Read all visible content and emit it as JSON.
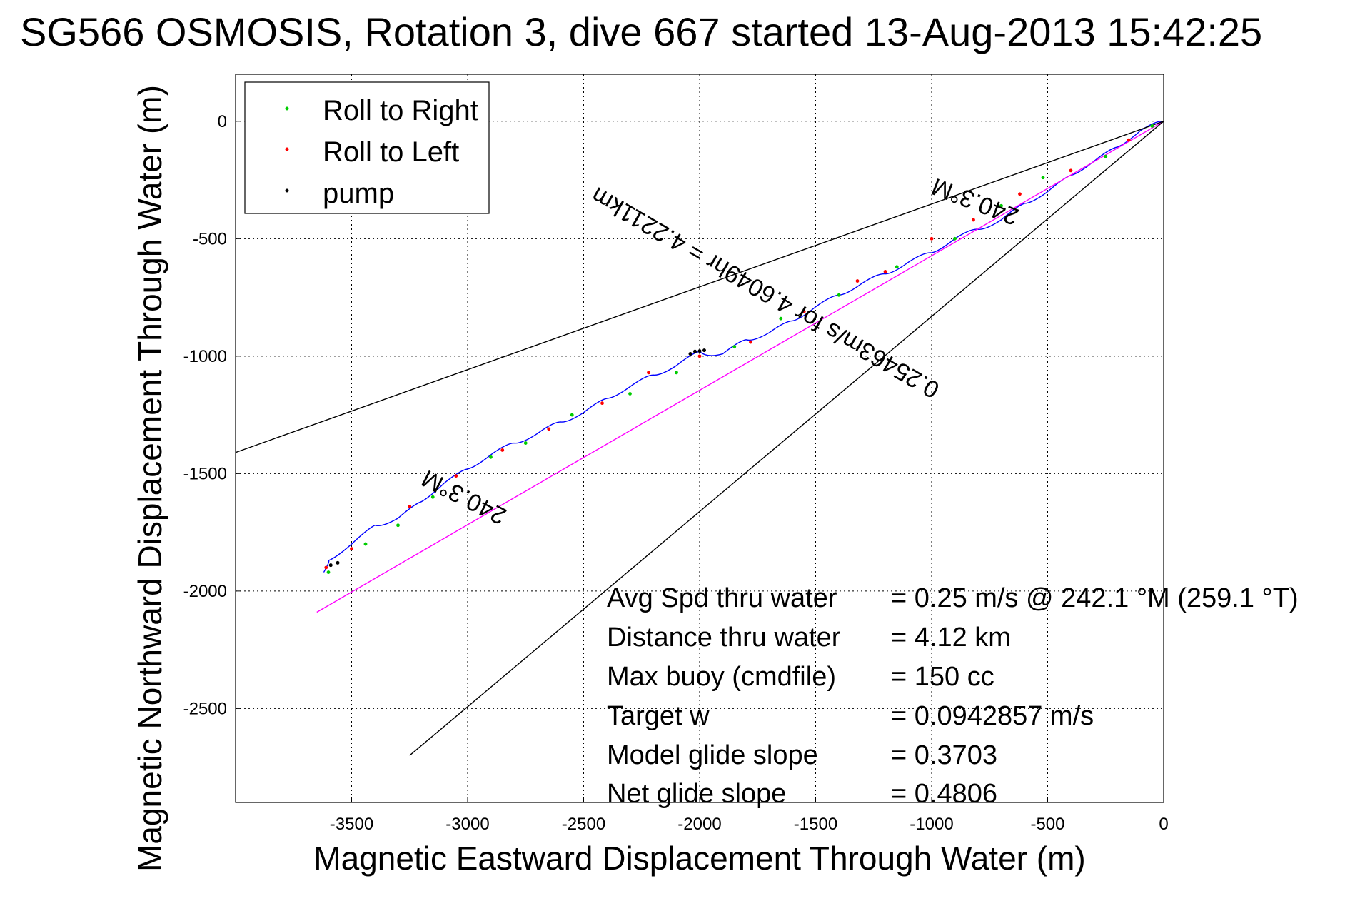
{
  "chart_data": {
    "type": "line",
    "title": "SG566 OSMOSIS, Rotation 3, dive 667 started 13-Aug-2013 15:42:25",
    "xlabel": "Magnetic Eastward Displacement Through Water (m)",
    "ylabel": "Magnetic Northward Displacement Through Water (m)",
    "xlim": [
      -4000,
      0
    ],
    "ylim": [
      -2900,
      200
    ],
    "grid": true,
    "x_ticks": [
      -3500,
      -3000,
      -2500,
      -2000,
      -1500,
      -1000,
      -500,
      0
    ],
    "y_ticks": [
      0,
      -500,
      -1000,
      -1500,
      -2000,
      -2500
    ],
    "x_tick_labels": [
      "-3500",
      "-3000",
      "-2500",
      "-2000",
      "-1500",
      "-1000",
      "-500",
      "0"
    ],
    "y_tick_labels": [
      "0",
      "-500",
      "-1000",
      "-1500",
      "-2000",
      "-2500"
    ],
    "legend": {
      "position": "top-left",
      "entries": [
        {
          "label": "Roll to Right",
          "color": "#00cc00"
        },
        {
          "label": "Roll to Left",
          "color": "#ff0000"
        },
        {
          "label": "pump",
          "color": "#000000"
        }
      ]
    },
    "series": [
      {
        "color": "#0000ff",
        "style": "track",
        "x": [
          0,
          -100,
          -200,
          -300,
          -400,
          -500,
          -600,
          -700,
          -800,
          -900,
          -1000,
          -1100,
          -1200,
          -1300,
          -1400,
          -1500,
          -1600,
          -1700,
          -1800,
          -1900,
          -2000,
          -2100,
          -2200,
          -2300,
          -2400,
          -2500,
          -2600,
          -2700,
          -2800,
          -2900,
          -3000,
          -3100,
          -3200,
          -3300,
          -3400,
          -3500,
          -3600,
          -3620
        ],
        "y": [
          0,
          -40,
          -110,
          -170,
          -230,
          -300,
          -350,
          -420,
          -460,
          -500,
          -560,
          -600,
          -650,
          -690,
          -740,
          -790,
          -850,
          -900,
          -930,
          -990,
          -980,
          -1040,
          -1080,
          -1130,
          -1180,
          -1240,
          -1280,
          -1330,
          -1370,
          -1420,
          -1480,
          -1540,
          -1620,
          -1690,
          -1720,
          -1800,
          -1870,
          -1920
        ]
      },
      {
        "color": "#ff00ff",
        "style": "line",
        "x": [
          0,
          -3650
        ],
        "y": [
          0,
          -2090
        ]
      },
      {
        "color": "#000000",
        "style": "line",
        "x": [
          0,
          -4000
        ],
        "y": [
          0,
          -1410
        ]
      },
      {
        "color": "#000000",
        "style": "line",
        "x": [
          0,
          -3250
        ],
        "y": [
          0,
          -2700
        ]
      }
    ],
    "markers": {
      "roll_right": {
        "color": "#00cc00",
        "x": [
          -50,
          -250,
          -520,
          -700,
          -900,
          -1150,
          -1400,
          -1650,
          -1850,
          -2100,
          -2300,
          -2550,
          -2750,
          -2900,
          -3150,
          -3300,
          -3440,
          -3600
        ],
        "y": [
          -20,
          -150,
          -240,
          -360,
          -500,
          -620,
          -740,
          -840,
          -960,
          -1070,
          -1160,
          -1250,
          -1370,
          -1430,
          -1600,
          -1720,
          -1800,
          -1920
        ]
      },
      "roll_left": {
        "color": "#ff0000",
        "x": [
          -150,
          -400,
          -620,
          -820,
          -1000,
          -1200,
          -1320,
          -1550,
          -1780,
          -2000,
          -2220,
          -2420,
          -2650,
          -2850,
          -3050,
          -3250,
          -3500,
          -3610
        ],
        "y": [
          -80,
          -210,
          -310,
          -420,
          -500,
          -640,
          -680,
          -810,
          -940,
          -1000,
          -1070,
          -1200,
          -1310,
          -1400,
          -1510,
          -1640,
          -1820,
          -1900
        ]
      },
      "pump": {
        "color": "#000000",
        "x": [
          -1980,
          -2000,
          -2020,
          -2040,
          -3560,
          -3590
        ],
        "y": [
          -975,
          -978,
          -980,
          -990,
          -1880,
          -1890
        ]
      }
    },
    "annotations": [
      {
        "text": "240.3°M",
        "x": -800,
        "y": -310,
        "rotate": 201
      },
      {
        "text": "0.25463m/s for 4.6049hr = 4.2211km",
        "x": -1700,
        "y": -700,
        "rotate": 210
      },
      {
        "text": "240.3°M",
        "x": -3000,
        "y": -1570,
        "rotate": 207
      }
    ],
    "info_lines": [
      {
        "label": "Avg Spd thru water",
        "value": "=  0.25 m/s @ 242.1 °M (259.1 °T)"
      },
      {
        "label": "Distance thru water",
        "value": "=  4.12 km"
      },
      {
        "label": "Max buoy (cmdfile)",
        "value": "= 150 cc"
      },
      {
        "label": "Target w",
        "value": "= 0.0942857 m/s"
      },
      {
        "label": "Model glide slope",
        "value": "= 0.3703"
      },
      {
        "label": "Net glide slope",
        "value": "= 0.4806"
      }
    ]
  }
}
